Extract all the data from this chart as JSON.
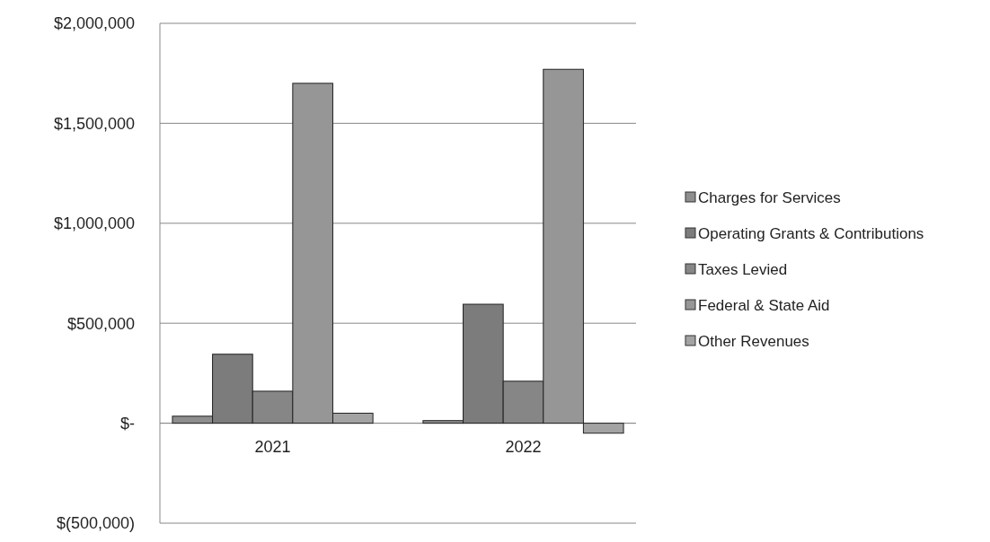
{
  "chart_data": {
    "type": "bar",
    "categories": [
      "2021",
      "2022"
    ],
    "series": [
      {
        "name": "Charges for Services",
        "color": "#8e8e8e",
        "values": [
          35000,
          13000
        ]
      },
      {
        "name": "Operating Grants & Contributions",
        "color": "#7c7c7c",
        "values": [
          345000,
          595000
        ]
      },
      {
        "name": "Taxes Levied",
        "color": "#868686",
        "values": [
          160000,
          210000
        ]
      },
      {
        "name": "Federal & State Aid",
        "color": "#969696",
        "values": [
          1700000,
          1770000
        ]
      },
      {
        "name": "Other Revenues",
        "color": "#a3a3a3",
        "values": [
          50000,
          -50000
        ]
      }
    ],
    "ylim": [
      -500000,
      2000000
    ],
    "yticks": [
      {
        "value": -500000,
        "label": "$(500,000)"
      },
      {
        "value": 0,
        "label": "$-"
      },
      {
        "value": 500000,
        "label": "$500,000"
      },
      {
        "value": 1000000,
        "label": "$1,000,000"
      },
      {
        "value": 1500000,
        "label": "$1,500,000"
      },
      {
        "value": 2000000,
        "label": "$2,000,000"
      }
    ],
    "grid": "y",
    "legend": "right"
  }
}
